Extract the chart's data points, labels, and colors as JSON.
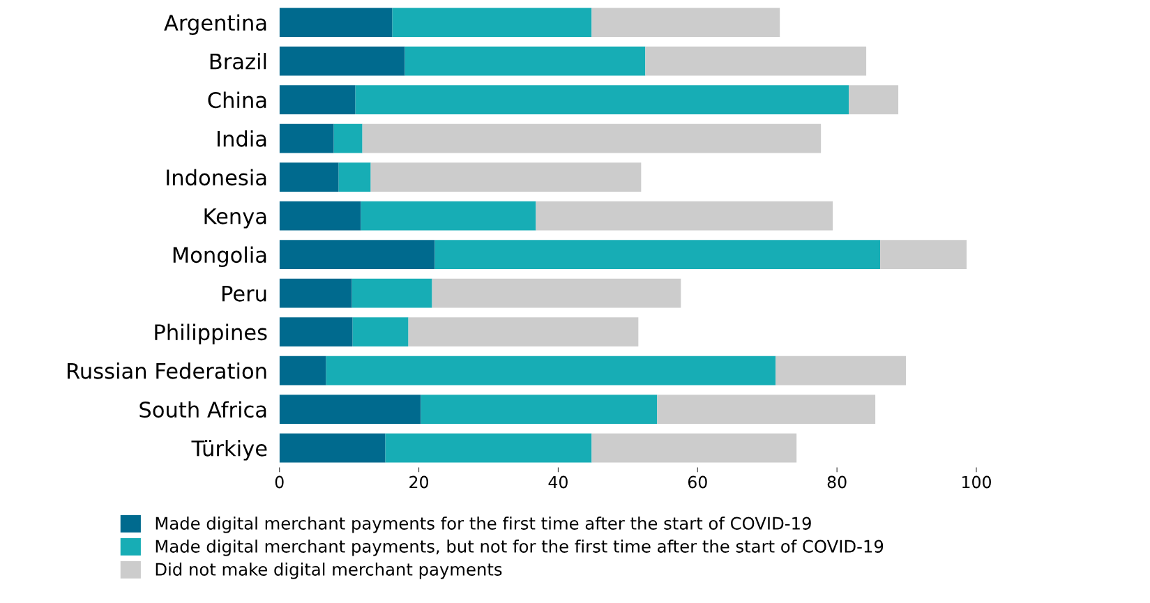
{
  "chart_data": {
    "type": "bar",
    "orientation": "horizontal",
    "stacked": true,
    "categories": [
      "Argentina",
      "Brazil",
      "China",
      "India",
      "Indonesia",
      "Kenya",
      "Mongolia",
      "Peru",
      "Philippines",
      "Russian Federation",
      "South Africa",
      "Türkiye"
    ],
    "series": [
      {
        "name": "Made digital merchant payments for the first time after the start of COVID-19",
        "color": "#006a8e",
        "values": [
          16.2,
          18.0,
          10.9,
          7.8,
          8.5,
          11.7,
          22.3,
          10.4,
          10.5,
          6.7,
          20.3,
          15.2
        ]
      },
      {
        "name": "Made digital merchant payments, but not for the first time after the start of COVID-19",
        "color": "#17adb5",
        "values": [
          28.6,
          34.5,
          70.8,
          4.1,
          4.6,
          25.1,
          63.9,
          11.5,
          8.0,
          64.5,
          33.9,
          29.6
        ]
      },
      {
        "name": "Did not make digital merchant payments",
        "color": "#cccccc",
        "values": [
          27.0,
          31.7,
          7.1,
          65.8,
          38.8,
          42.6,
          12.4,
          35.7,
          33.0,
          18.7,
          31.3,
          29.4
        ]
      }
    ],
    "xlim": [
      0,
      100
    ],
    "xticks": [
      0,
      20,
      40,
      60,
      80,
      100
    ],
    "grid": false,
    "legend": "bottom"
  }
}
